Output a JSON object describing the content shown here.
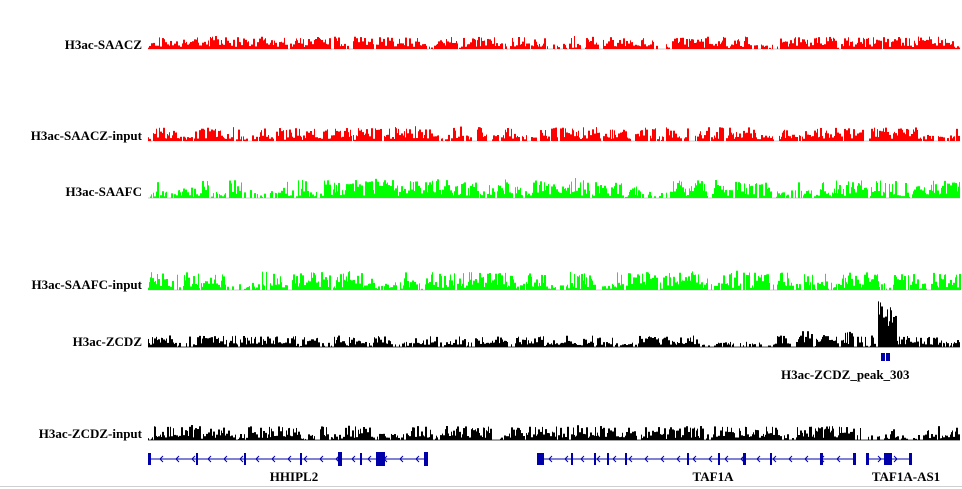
{
  "colors": {
    "red": "#ff0000",
    "green": "#00ff00",
    "black": "#000000",
    "gene_blue": "#0000aa"
  },
  "tracks": [
    {
      "label": "H3ac-SAACZ",
      "color_key": "red",
      "seed": 11,
      "boost": []
    },
    {
      "label": "H3ac-SAACZ-input",
      "color_key": "red",
      "seed": 23,
      "boost": []
    },
    {
      "label": "H3ac-SAAFC",
      "color_key": "green",
      "seed": 37,
      "boost": []
    },
    {
      "label": "H3ac-SAAFC-input",
      "color_key": "green",
      "seed": 41,
      "boost": []
    },
    {
      "label": "H3ac-ZCDZ",
      "color_key": "black",
      "seed": 53,
      "boost": [
        0.9
      ]
    },
    {
      "label": "H3ac-ZCDZ-input",
      "color_key": "black",
      "seed": 67,
      "boost": []
    }
  ],
  "peak": {
    "label": "H3ac-ZCDZ_peak_303",
    "track_index": 4
  },
  "genes": [
    {
      "name": "HHIPL2",
      "strand": "-"
    },
    {
      "name": "TAF1A",
      "strand": "-"
    },
    {
      "name": "TAF1A-AS1",
      "strand": "+"
    }
  ]
}
